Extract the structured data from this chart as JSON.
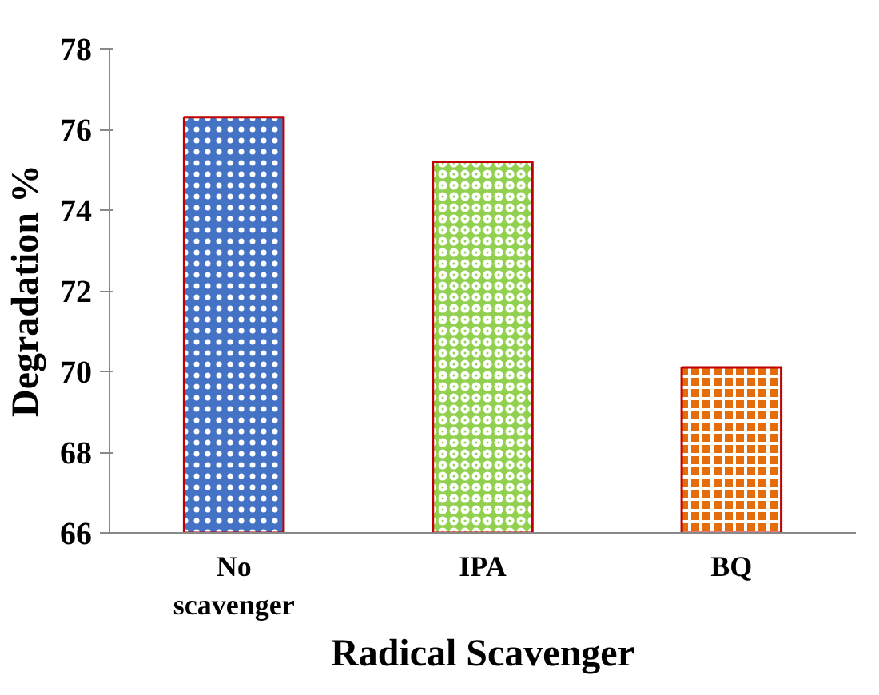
{
  "chart_data": {
    "type": "bar",
    "xlabel": "Radical Scavenger",
    "ylabel": "Degradation %",
    "categories": [
      "No\nscavenger",
      "IPA",
      "BQ"
    ],
    "values": [
      76.3,
      75.2,
      70.1
    ],
    "colors": [
      "#4472c4",
      "#92d050",
      "#e46c0a"
    ],
    "ylim": [
      66,
      78
    ],
    "yticks": [
      66,
      68,
      70,
      72,
      74,
      76,
      78
    ],
    "grid": false
  }
}
